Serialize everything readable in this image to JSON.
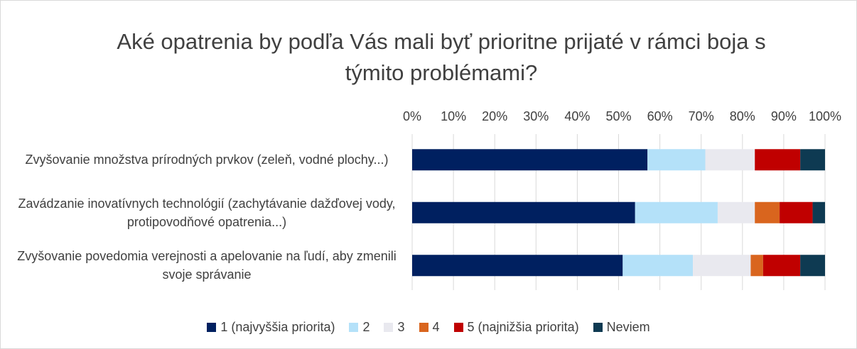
{
  "chart_data": {
    "type": "bar",
    "orientation": "horizontal",
    "stacked": true,
    "title": "Aké opatrenia by podľa Vás mali byť prioritne prijaté v rámci boja s týmito problémami?",
    "categories": [
      "Zvyšovanie množstva prírodných prvkov (zeleň, vodné plochy...)",
      "Zavádzanie inovatívnych technológií (zachytávanie dažďovej vody, protipovodňové opatrenia...)",
      "Zvyšovanie povedomia verejnosti a apelovanie na ľudí, aby zmenili svoje správanie"
    ],
    "series": [
      {
        "name": "1 (najvyššia priorita)",
        "color": "#002060",
        "values": [
          57,
          54,
          51
        ]
      },
      {
        "name": "2",
        "color": "#b4e1f9",
        "values": [
          14,
          20,
          17
        ]
      },
      {
        "name": "3",
        "color": "#e9e9ef",
        "values": [
          12,
          9,
          14
        ]
      },
      {
        "name": "4",
        "color": "#d9651e",
        "values": [
          0,
          6,
          3
        ]
      },
      {
        "name": "5 (najnižšia priorita)",
        "color": "#c00000",
        "values": [
          11,
          8,
          9
        ]
      },
      {
        "name": "Neviem",
        "color": "#0e3a52",
        "values": [
          6,
          3,
          6
        ]
      }
    ],
    "xlim": [
      0,
      100
    ],
    "xticks": [
      {
        "value": 0,
        "label": "0%"
      },
      {
        "value": 10,
        "label": "10%"
      },
      {
        "value": 20,
        "label": "20%"
      },
      {
        "value": 30,
        "label": "30%"
      },
      {
        "value": 40,
        "label": "40%"
      },
      {
        "value": 50,
        "label": "50%"
      },
      {
        "value": 60,
        "label": "60%"
      },
      {
        "value": 70,
        "label": "70%"
      },
      {
        "value": 80,
        "label": "80%"
      },
      {
        "value": 90,
        "label": "90%"
      },
      {
        "value": 100,
        "label": "100%"
      }
    ],
    "grid": true,
    "legend": "bottom"
  }
}
